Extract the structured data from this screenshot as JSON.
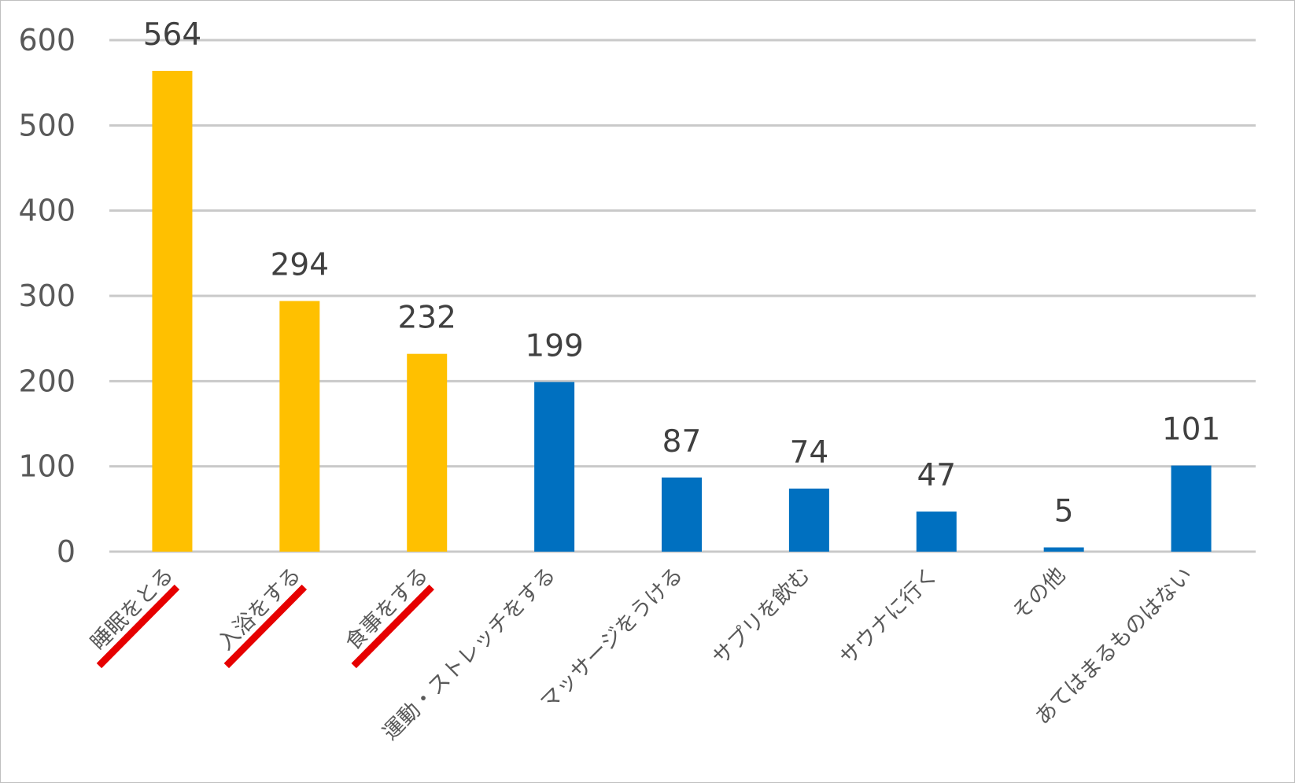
{
  "chart_data": {
    "type": "bar",
    "title": "",
    "xlabel": "",
    "ylabel": "",
    "ylim": [
      0,
      600
    ],
    "yticks": [
      0,
      100,
      200,
      300,
      400,
      500,
      600
    ],
    "grid": true,
    "legend": "none",
    "categories": [
      "睡眠をとる",
      "入浴をする",
      "食事をする",
      "運動・ストレッチをする",
      "マッサージをうける",
      "サプリを飲む",
      "サウナに行く",
      "その他",
      "あてはまるものはない"
    ],
    "values": [
      564,
      294,
      232,
      199,
      87,
      74,
      47,
      5,
      101
    ],
    "bar_colors": [
      "#FFC000",
      "#FFC000",
      "#FFC000",
      "#0070C0",
      "#0070C0",
      "#0070C0",
      "#0070C0",
      "#0070C0",
      "#0070C0"
    ],
    "struck_categories": [
      0,
      1,
      2
    ],
    "strike_color": "#E60000",
    "data_labels": [
      "564",
      "294",
      "232",
      "199",
      "87",
      "74",
      "47",
      "5",
      "101"
    ],
    "tick_labels": [
      "0",
      "100",
      "200",
      "300",
      "400",
      "500",
      "600"
    ]
  }
}
